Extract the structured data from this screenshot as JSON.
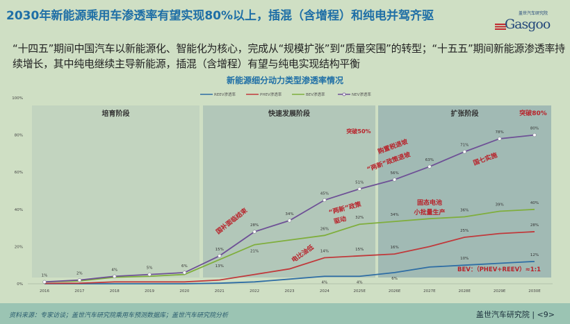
{
  "header": {
    "title": "2030年新能源乘用车渗透率有望实现80%以上，插混（含增程）和纯电并驾齐驱",
    "logo_text": "Gasgoo",
    "logo_cn": "盖世汽车研究院"
  },
  "subtitle": "“十四五”期间中国汽车以新能源化、智能化为核心，完成从“规模扩张”到“质量突围”的转型；“十五五”期间新能源渗透率持续增长，其中纯电继续主导新能源，插混（含增程）有望与纯电实现结构平衡",
  "chart_data": {
    "type": "line",
    "title": "新能源细分动力类型渗透率情况",
    "categories": [
      "2016",
      "2017",
      "2018",
      "2019",
      "2020",
      "2021",
      "2022",
      "2023",
      "2024",
      "2025E",
      "2026E",
      "2027E",
      "2028E",
      "2029E",
      "2030E"
    ],
    "ylim": [
      0,
      100
    ],
    "yticks": [
      "0%",
      "20%",
      "40%",
      "60%",
      "80%",
      "100%"
    ],
    "legend_position": "top",
    "series": [
      {
        "name": "REEV渗透率",
        "color": "#2e6da4",
        "values": [
          0,
          0,
          0,
          0,
          0,
          0.3,
          1,
          2.5,
          4,
          4,
          6,
          9,
          10,
          11,
          12
        ],
        "labels": {
          "8": "4%",
          "9": "4%",
          "10": "6%",
          "12": "10%",
          "14": "12%"
        }
      },
      {
        "name": "PHEV渗透率",
        "color": "#c0393b",
        "values": [
          0.2,
          0.3,
          1,
          1,
          1,
          2,
          5,
          8,
          14,
          15,
          16,
          20,
          25,
          27,
          28
        ],
        "labels": {
          "8": "14%",
          "9": "15%",
          "10": "16%",
          "12": "25%",
          "14": "28%"
        }
      },
      {
        "name": "BEV渗透率",
        "color": "#7fae3c",
        "values": [
          1,
          1.5,
          3.5,
          4,
          5,
          13,
          21,
          23.5,
          26,
          32,
          33.5,
          35,
          36,
          39,
          40
        ],
        "labels": {
          "5": "13%",
          "6": "21%",
          "8": "26%",
          "9": "32%",
          "10": "34%",
          "12": "36%",
          "13": "39%",
          "14": "40%"
        }
      },
      {
        "name": "NEV渗透率",
        "color": "#6e5096",
        "values": [
          1,
          2,
          4,
          5,
          6,
          15,
          28,
          34,
          45,
          51,
          56,
          63,
          71,
          78,
          80
        ],
        "labels": {
          "0": "1%",
          "1": "2%",
          "2": "4%",
          "3": "5%",
          "4": "6%",
          "5": "15%",
          "6": "28%",
          "7": "34%",
          "8": "45%",
          "9": "51%",
          "10": "56%",
          "11": "63%",
          "12": "71%",
          "13": "78%",
          "14": "80%"
        }
      }
    ],
    "stages": [
      {
        "label": "培育阶段",
        "from": "2016",
        "to": "2020"
      },
      {
        "label": "快速发展阶段",
        "from": "2021",
        "to": "2025E"
      },
      {
        "label": "扩张阶段",
        "from": "2026E",
        "to": "2030E"
      }
    ],
    "annotations": [
      "突破50%",
      "突破80%",
      "购置税退坡",
      "“两新”政策退坡",
      "国七实施",
      "国补面临结束",
      "“两新”政策",
      "驱动",
      "固态电池",
      "小批量生产",
      "电比油低",
      "BEV：（PHEV+REEV）≈1:1"
    ]
  },
  "footer": {
    "source": "资料来源：专家访谈；盖世汽车研究院乘用车预测数据库；盖世汽车研究院分析",
    "brand": "盖世汽车研究院 | <9>"
  }
}
